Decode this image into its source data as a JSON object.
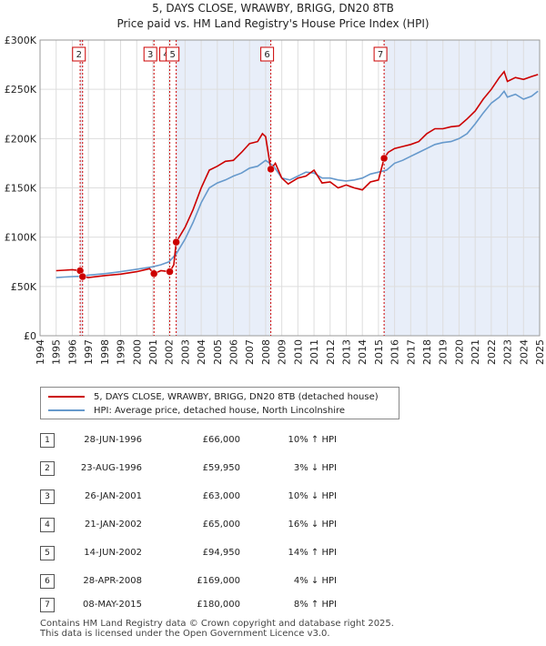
{
  "title": "5, DAYS CLOSE, WRAWBY, BRIGG, DN20 8TB",
  "subtitle": "Price paid vs. HM Land Registry's House Price Index (HPI)",
  "colors": {
    "property": "#cc0000",
    "hpi": "#6699cc",
    "shade": "#e8eef9",
    "grid": "#dddddd",
    "vline": "#cc0000"
  },
  "chart_data": {
    "type": "line",
    "title": "5, DAYS CLOSE, WRAWBY, BRIGG, DN20 8TB",
    "xlim": [
      1994,
      2025
    ],
    "ylim": [
      0,
      300000
    ],
    "y_ticks": [
      0,
      50000,
      100000,
      150000,
      200000,
      250000,
      300000
    ],
    "y_tick_labels": [
      "£0",
      "£50K",
      "£100K",
      "£150K",
      "£200K",
      "£250K",
      "£300K"
    ],
    "x_ticks": [
      1994,
      1995,
      1996,
      1997,
      1998,
      1999,
      2000,
      2001,
      2002,
      2003,
      2004,
      2005,
      2006,
      2007,
      2008,
      2009,
      2010,
      2011,
      2012,
      2013,
      2014,
      2015,
      2016,
      2017,
      2018,
      2019,
      2020,
      2021,
      2022,
      2023,
      2024,
      2025
    ],
    "x_tick_labels": [
      "1994",
      "1995",
      "1996",
      "1997",
      "1998",
      "1999",
      "2000",
      "2001",
      "2002",
      "2003",
      "2004",
      "2005",
      "2006",
      "2007",
      "2008",
      "2009",
      "2010",
      "2011",
      "2012",
      "2013",
      "2014",
      "2015",
      "2016",
      "2017",
      "2018",
      "2019",
      "2020",
      "2021",
      "2022",
      "2023",
      "2024",
      "2025"
    ],
    "shaded_ranges": [
      [
        1996.49,
        1996.64
      ],
      [
        2002.45,
        2008.32
      ],
      [
        2015.35,
        2025
      ]
    ],
    "series": [
      {
        "name": "5, DAYS CLOSE, WRAWBY, BRIGG, DN20 8TB (detached house)",
        "color": "#cc0000",
        "points": [
          [
            1995.0,
            66000
          ],
          [
            1995.5,
            66500
          ],
          [
            1996.0,
            67000
          ],
          [
            1996.49,
            66000
          ],
          [
            1996.64,
            59950
          ],
          [
            1997.0,
            59000
          ],
          [
            1998.0,
            61000
          ],
          [
            1999.0,
            62500
          ],
          [
            2000.0,
            65000
          ],
          [
            2000.8,
            68000
          ],
          [
            2001.07,
            63000
          ],
          [
            2001.5,
            66000
          ],
          [
            2002.05,
            65000
          ],
          [
            2002.3,
            72000
          ],
          [
            2002.45,
            94950
          ],
          [
            2003.0,
            110000
          ],
          [
            2003.5,
            128000
          ],
          [
            2004.0,
            150000
          ],
          [
            2004.5,
            168000
          ],
          [
            2005.0,
            172000
          ],
          [
            2005.5,
            177000
          ],
          [
            2006.0,
            178000
          ],
          [
            2006.5,
            186000
          ],
          [
            2007.0,
            195000
          ],
          [
            2007.5,
            197000
          ],
          [
            2007.8,
            205000
          ],
          [
            2008.0,
            202000
          ],
          [
            2008.32,
            169000
          ],
          [
            2008.6,
            175000
          ],
          [
            2009.0,
            160000
          ],
          [
            2009.4,
            154000
          ],
          [
            2010.0,
            160000
          ],
          [
            2010.5,
            162000
          ],
          [
            2011.0,
            168000
          ],
          [
            2011.5,
            155000
          ],
          [
            2012.0,
            156000
          ],
          [
            2012.5,
            150000
          ],
          [
            2013.0,
            153000
          ],
          [
            2013.5,
            150000
          ],
          [
            2014.0,
            148000
          ],
          [
            2014.5,
            156000
          ],
          [
            2015.0,
            158000
          ],
          [
            2015.35,
            180000
          ],
          [
            2015.6,
            186000
          ],
          [
            2016.0,
            190000
          ],
          [
            2016.5,
            192000
          ],
          [
            2017.0,
            194000
          ],
          [
            2017.5,
            197000
          ],
          [
            2018.0,
            205000
          ],
          [
            2018.5,
            210000
          ],
          [
            2019.0,
            210000
          ],
          [
            2019.5,
            212000
          ],
          [
            2020.0,
            213000
          ],
          [
            2020.5,
            220000
          ],
          [
            2021.0,
            228000
          ],
          [
            2021.5,
            240000
          ],
          [
            2022.0,
            250000
          ],
          [
            2022.5,
            262000
          ],
          [
            2022.8,
            268000
          ],
          [
            2023.0,
            258000
          ],
          [
            2023.5,
            262000
          ],
          [
            2024.0,
            260000
          ],
          [
            2024.5,
            263000
          ],
          [
            2024.9,
            265000
          ]
        ]
      },
      {
        "name": "HPI: Average price, detached house, North Lincolnshire",
        "color": "#6699cc",
        "points": [
          [
            1995.0,
            59000
          ],
          [
            1995.5,
            59500
          ],
          [
            1996.0,
            60000
          ],
          [
            1996.5,
            60300
          ],
          [
            1997.0,
            61500
          ],
          [
            1998.0,
            63000
          ],
          [
            1999.0,
            65000
          ],
          [
            2000.0,
            67500
          ],
          [
            2001.0,
            70000
          ],
          [
            2001.5,
            72000
          ],
          [
            2002.0,
            75000
          ],
          [
            2002.45,
            83000
          ],
          [
            2003.0,
            98000
          ],
          [
            2003.5,
            115000
          ],
          [
            2004.0,
            135000
          ],
          [
            2004.5,
            150000
          ],
          [
            2005.0,
            155000
          ],
          [
            2005.5,
            158000
          ],
          [
            2006.0,
            162000
          ],
          [
            2006.5,
            165000
          ],
          [
            2007.0,
            170000
          ],
          [
            2007.5,
            172000
          ],
          [
            2008.0,
            178000
          ],
          [
            2008.5,
            172000
          ],
          [
            2009.0,
            160000
          ],
          [
            2009.5,
            158000
          ],
          [
            2010.0,
            162000
          ],
          [
            2010.5,
            166000
          ],
          [
            2011.0,
            165000
          ],
          [
            2011.5,
            160000
          ],
          [
            2012.0,
            160000
          ],
          [
            2012.5,
            158000
          ],
          [
            2013.0,
            157000
          ],
          [
            2013.5,
            158000
          ],
          [
            2014.0,
            160000
          ],
          [
            2014.5,
            164000
          ],
          [
            2015.0,
            166000
          ],
          [
            2015.5,
            168000
          ],
          [
            2016.0,
            175000
          ],
          [
            2016.5,
            178000
          ],
          [
            2017.0,
            182000
          ],
          [
            2017.5,
            186000
          ],
          [
            2018.0,
            190000
          ],
          [
            2018.5,
            194000
          ],
          [
            2019.0,
            196000
          ],
          [
            2019.5,
            197000
          ],
          [
            2020.0,
            200000
          ],
          [
            2020.5,
            205000
          ],
          [
            2021.0,
            215000
          ],
          [
            2021.5,
            226000
          ],
          [
            2022.0,
            236000
          ],
          [
            2022.5,
            242000
          ],
          [
            2022.8,
            248000
          ],
          [
            2023.0,
            242000
          ],
          [
            2023.5,
            245000
          ],
          [
            2024.0,
            240000
          ],
          [
            2024.5,
            243000
          ],
          [
            2024.9,
            248000
          ]
        ]
      }
    ],
    "sale_markers": [
      {
        "label": "1",
        "x": 1996.49,
        "value": 66000
      },
      {
        "label": "2",
        "x": 1996.64,
        "value": 59950
      },
      {
        "label": "3",
        "x": 2001.07,
        "value": 63000
      },
      {
        "label": "4",
        "x": 2002.05,
        "value": 65000
      },
      {
        "label": "5",
        "x": 2002.45,
        "value": 94950
      },
      {
        "label": "6",
        "x": 2008.32,
        "value": 169000
      },
      {
        "label": "7",
        "x": 2015.35,
        "value": 180000
      }
    ],
    "top_labels": [
      {
        "label": "2",
        "x": 1996.64
      },
      {
        "label": "3",
        "x": 2001.07
      },
      {
        "label": "4",
        "x": 2002.05
      },
      {
        "label": "5",
        "x": 2002.45
      },
      {
        "label": "6",
        "x": 2008.32
      },
      {
        "label": "7",
        "x": 2015.35
      }
    ]
  },
  "legend": {
    "property": "5, DAYS CLOSE, WRAWBY, BRIGG, DN20 8TB (detached house)",
    "hpi": "HPI: Average price, detached house, North Lincolnshire"
  },
  "sales": [
    {
      "num": "1",
      "date": "28-JUN-1996",
      "price": "£66,000",
      "hpi": "10% ↑ HPI"
    },
    {
      "num": "2",
      "date": "23-AUG-1996",
      "price": "£59,950",
      "hpi": "3% ↓ HPI"
    },
    {
      "num": "3",
      "date": "26-JAN-2001",
      "price": "£63,000",
      "hpi": "10% ↓ HPI"
    },
    {
      "num": "4",
      "date": "21-JAN-2002",
      "price": "£65,000",
      "hpi": "16% ↓ HPI"
    },
    {
      "num": "5",
      "date": "14-JUN-2002",
      "price": "£94,950",
      "hpi": "14% ↑ HPI"
    },
    {
      "num": "6",
      "date": "28-APR-2008",
      "price": "£169,000",
      "hpi": "4% ↓ HPI"
    },
    {
      "num": "7",
      "date": "08-MAY-2015",
      "price": "£180,000",
      "hpi": "8% ↑ HPI"
    }
  ],
  "footer": {
    "line1": "Contains HM Land Registry data © Crown copyright and database right 2025.",
    "line2": "This data is licensed under the Open Government Licence v3.0."
  }
}
